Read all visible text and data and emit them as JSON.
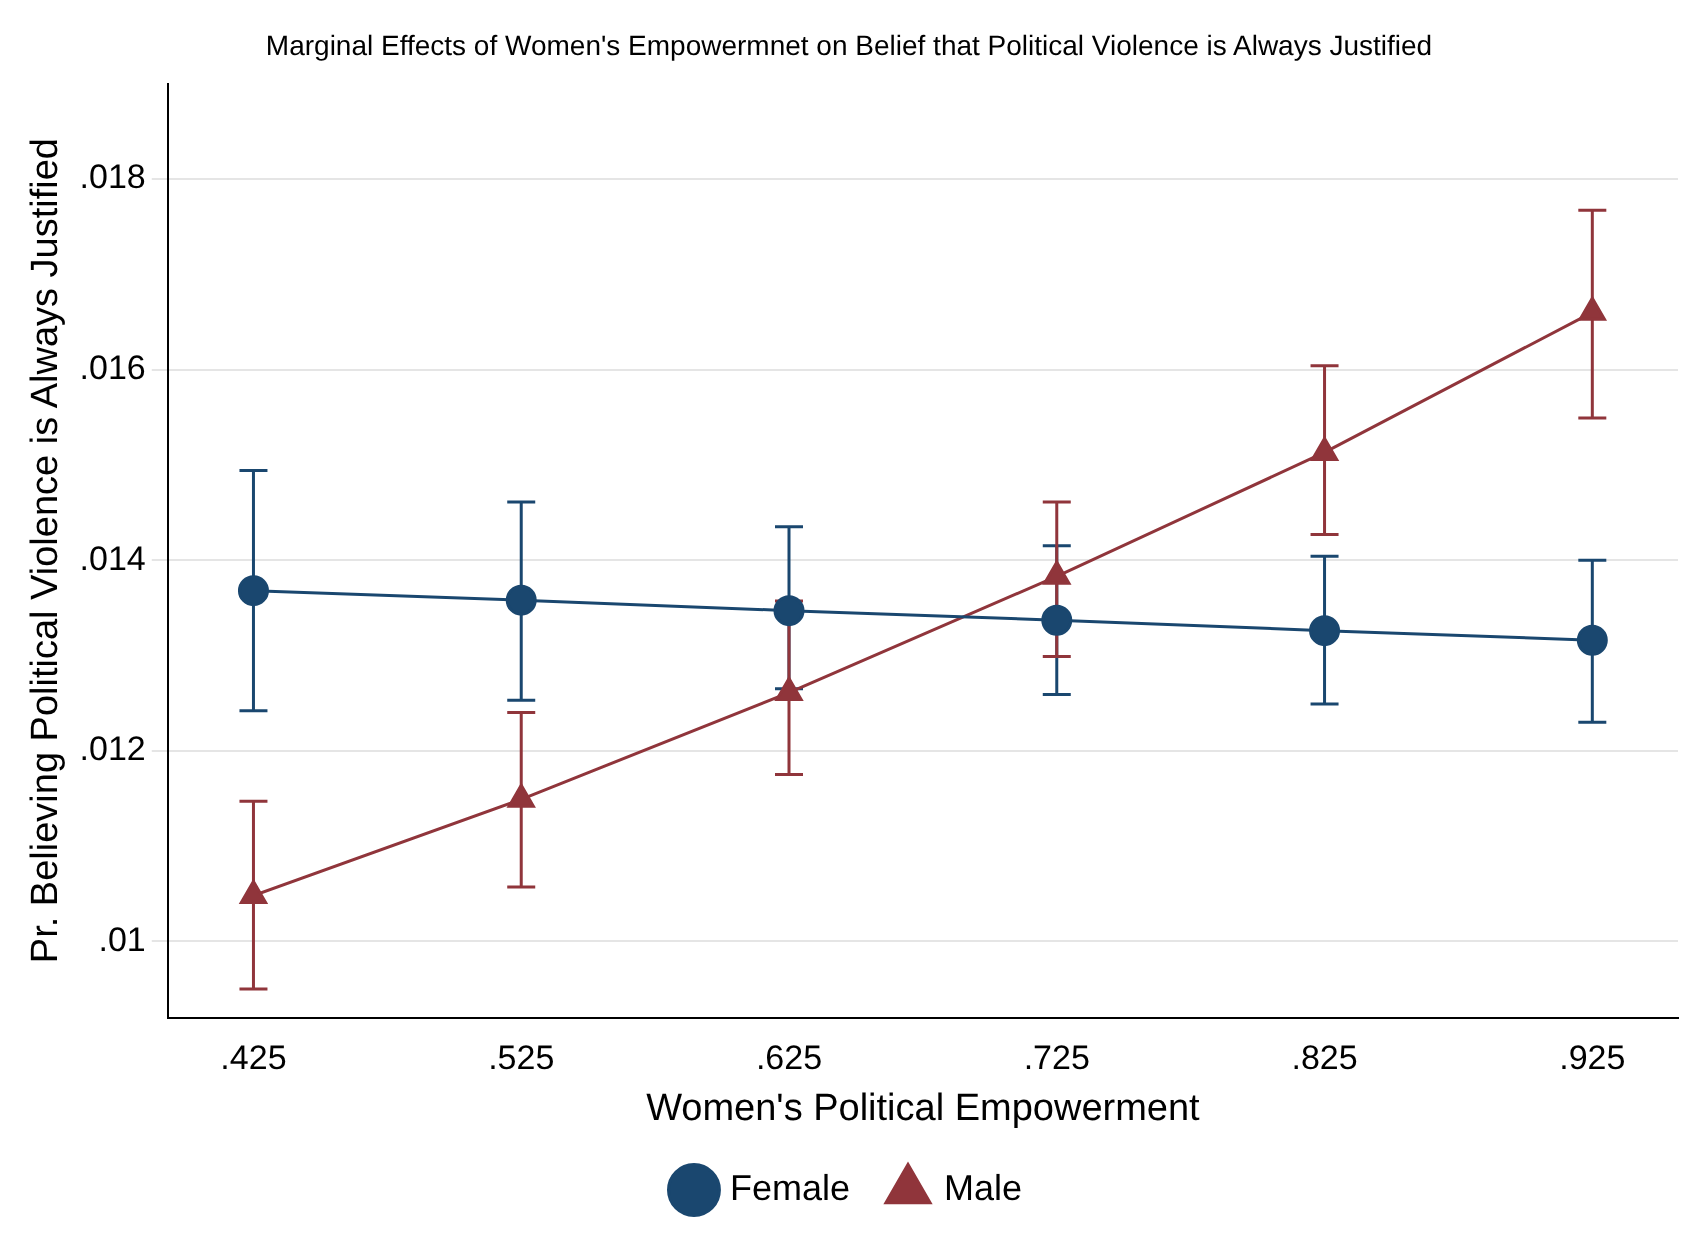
{
  "chart_data": {
    "type": "line",
    "title": "Marginal Effects of Women's Empowermnet on Belief that Political Violence is Always Justified",
    "xlabel": "Women's Political Empowerment",
    "ylabel": "Pr. Believing Political Violence is Always Justified",
    "x": [
      0.425,
      0.525,
      0.625,
      0.725,
      0.825,
      0.925
    ],
    "series": [
      {
        "name": "Female",
        "color": "#1a476f",
        "marker": "circle",
        "values": [
          0.01368,
          0.01358,
          0.01347,
          0.01337,
          0.01326,
          0.01316
        ],
        "errors": [
          [
            0.01242,
            0.01494
          ],
          [
            0.01253,
            0.01461
          ],
          [
            0.01265,
            0.01435
          ],
          [
            0.01259,
            0.01415
          ],
          [
            0.01249,
            0.01404
          ],
          [
            0.0123,
            0.014
          ]
        ]
      },
      {
        "name": "Male",
        "color": "#90353b",
        "marker": "triangle",
        "values": [
          0.01048,
          0.01149,
          0.01261,
          0.01383,
          0.01513,
          0.0166
        ],
        "errors": [
          [
            0.0095,
            0.01147
          ],
          [
            0.01057,
            0.0124
          ],
          [
            0.01175,
            0.01357
          ],
          [
            0.01299,
            0.01461
          ],
          [
            0.01427,
            0.01604
          ],
          [
            0.01549,
            0.01767
          ]
        ]
      }
    ],
    "xlim": [
      0.393,
      0.957
    ],
    "xticks": [
      {
        "value": 0.425,
        "label": ".425"
      },
      {
        "value": 0.525,
        "label": ".525"
      },
      {
        "value": 0.625,
        "label": ".625"
      },
      {
        "value": 0.725,
        "label": ".725"
      },
      {
        "value": 0.825,
        "label": ".825"
      },
      {
        "value": 0.925,
        "label": ".925"
      }
    ],
    "ylim": [
      0.0092,
      0.019
    ],
    "yticks": [
      {
        "value": 0.01,
        "label": ".01"
      },
      {
        "value": 0.012,
        "label": ".012"
      },
      {
        "value": 0.014,
        "label": ".014"
      },
      {
        "value": 0.016,
        "label": ".016"
      },
      {
        "value": 0.018,
        "label": ".018"
      }
    ],
    "grid": "y",
    "legend": "bottom",
    "line_style": "solid"
  }
}
